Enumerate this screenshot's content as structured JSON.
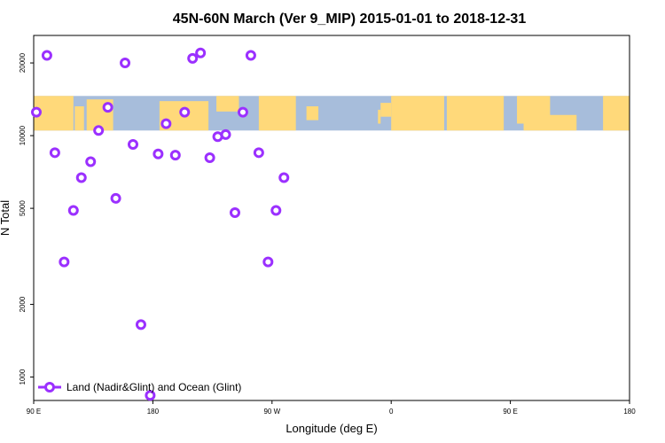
{
  "chart_data": {
    "type": "scatter",
    "title": "45N-60N March (Ver 9_MIP)   2015-01-01 to 2018-12-31",
    "xlabel": "Longitude (deg E)",
    "ylabel": "N Total",
    "x_axis": {
      "range_deg_east": [
        90,
        180
      ],
      "wraps_around": true,
      "ticks": [
        {
          "value": 90,
          "label": "90 E"
        },
        {
          "value": 180,
          "label": "180"
        },
        {
          "value": 270,
          "label": "90 W"
        },
        {
          "value": 360,
          "label": "0"
        },
        {
          "value": 450,
          "label": "90 E"
        },
        {
          "value": 540,
          "label": "180"
        }
      ]
    },
    "y_axis": {
      "scale": "log",
      "range": [
        800,
        26000
      ],
      "ticks": [
        {
          "value": 1000,
          "label": "1000"
        },
        {
          "value": 2000,
          "label": "2000"
        },
        {
          "value": 5000,
          "label": "5000"
        },
        {
          "value": 10000,
          "label": "10000"
        },
        {
          "value": 20000,
          "label": "20000"
        }
      ]
    },
    "grid": false,
    "legend_position": "bottom-left",
    "series": [
      {
        "name": "Land (Nadir&Glint) and Ocean (Glint)",
        "color": "#9b30ff",
        "marker": "open-circle",
        "points": [
          {
            "lon": 92,
            "value": 12500
          },
          {
            "lon": 100,
            "value": 21500
          },
          {
            "lon": 106,
            "value": 8500
          },
          {
            "lon": 113,
            "value": 3000
          },
          {
            "lon": 120,
            "value": 4900
          },
          {
            "lon": 126,
            "value": 6700
          },
          {
            "lon": 133,
            "value": 7800
          },
          {
            "lon": 139,
            "value": 10500
          },
          {
            "lon": 146,
            "value": 13100
          },
          {
            "lon": 152,
            "value": 5500
          },
          {
            "lon": 159,
            "value": 20000
          },
          {
            "lon": 165,
            "value": 9200
          },
          {
            "lon": 171,
            "value": 1650
          },
          {
            "lon": 178,
            "value": 840
          },
          {
            "lon": 184,
            "value": 8400
          },
          {
            "lon": 190,
            "value": 11200
          },
          {
            "lon": 197,
            "value": 8300
          },
          {
            "lon": 204,
            "value": 12500
          },
          {
            "lon": 210,
            "value": 20900
          },
          {
            "lon": 216,
            "value": 22000
          },
          {
            "lon": 223,
            "value": 8100
          },
          {
            "lon": 229,
            "value": 9900
          },
          {
            "lon": 235,
            "value": 10100
          },
          {
            "lon": 242,
            "value": 4800
          },
          {
            "lon": 248,
            "value": 12500
          },
          {
            "lon": 254,
            "value": 21500
          },
          {
            "lon": 260,
            "value": 8500
          },
          {
            "lon": 267,
            "value": 3000
          },
          {
            "lon": 273,
            "value": 4900
          },
          {
            "lon": 279,
            "value": 6700
          }
        ]
      }
    ],
    "background_map_band": {
      "latitude_band": "45N-60N",
      "value_range": [
        10500,
        14600
      ],
      "land_color": "#ffd97a",
      "ocean_color": "#a7bddb"
    }
  }
}
